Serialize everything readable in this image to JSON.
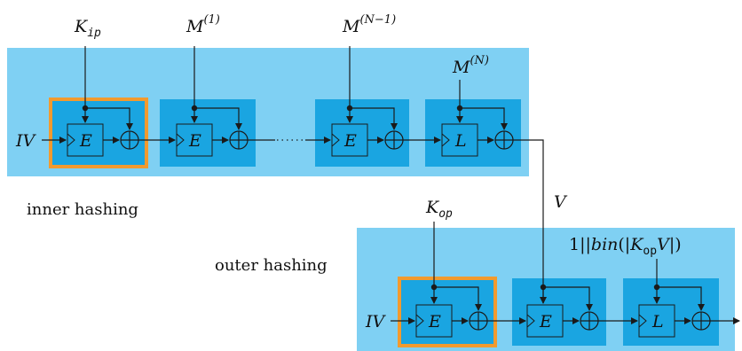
{
  "inputs": {
    "k_ip": {
      "base": "K",
      "sub": "ip"
    },
    "m1": {
      "base": "M",
      "sup": "(1)"
    },
    "mn1": {
      "base": "M",
      "sup": "(N−1)"
    },
    "mn": {
      "base": "M",
      "sup": "(N)"
    },
    "k_op": {
      "base": "K",
      "sub": "op"
    },
    "last_outer": {
      "prefix": "1||",
      "fn": "bin",
      "open": "(|",
      "key": "K",
      "key_sub": "op",
      "var": "V",
      "close": "|)"
    }
  },
  "iv_label": "IV",
  "v_label": "V",
  "block_labels": {
    "e": "E",
    "l": "L"
  },
  "captions": {
    "inner": "inner hashing",
    "outer": "outer hashing"
  },
  "colors": {
    "band": "#7fd0f3",
    "cell": "#1aa5e1",
    "highlight": "#f29a2e"
  }
}
